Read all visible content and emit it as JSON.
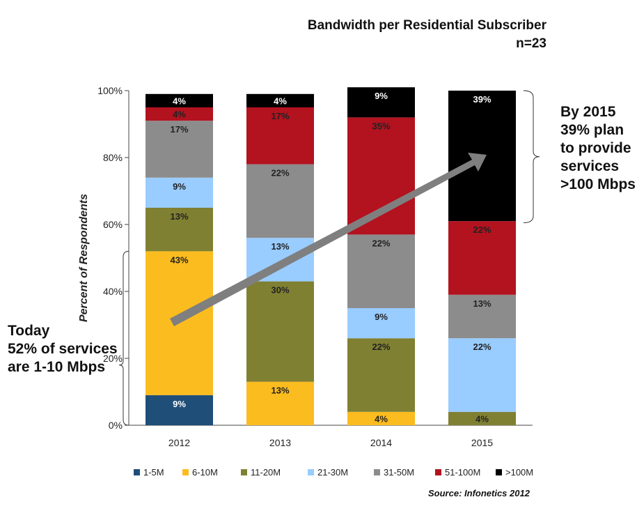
{
  "chart_data": {
    "type": "bar",
    "stacked": true,
    "title": "Bandwidth per Residential Subscriber",
    "subtitle": "n=23",
    "ylabel": "Percent of Respondents",
    "xlabel": "",
    "ylim": [
      0,
      100
    ],
    "yticks": [
      0,
      20,
      40,
      60,
      80,
      100
    ],
    "ytick_labels": [
      "0%",
      "20%",
      "40%",
      "60%",
      "80%",
      "100%"
    ],
    "categories": [
      "2012",
      "2013",
      "2014",
      "2015"
    ],
    "series": [
      {
        "name": "1-5M",
        "color": "#1f4e79",
        "values": [
          9,
          0,
          0,
          0
        ]
      },
      {
        "name": "6-10M",
        "color": "#fbbc1f",
        "values": [
          43,
          13,
          4,
          0
        ]
      },
      {
        "name": "11-20M",
        "color": "#808033",
        "values": [
          13,
          30,
          22,
          4
        ]
      },
      {
        "name": "21-30M",
        "color": "#99ccff",
        "values": [
          9,
          13,
          9,
          22
        ]
      },
      {
        "name": "31-50M",
        "color": "#8c8c8c",
        "values": [
          17,
          22,
          22,
          13
        ]
      },
      {
        "name": "51-100M",
        "color": "#b3121f",
        "values": [
          4,
          17,
          35,
          22
        ]
      },
      {
        "name": ">100M",
        "color": "#000000",
        "values": [
          4,
          4,
          9,
          39
        ]
      }
    ],
    "legend_position": "bottom"
  },
  "annotations": {
    "left_callout": [
      "Today",
      "52% of services",
      "are 1-10 Mbps"
    ],
    "right_callout": [
      "By 2015",
      "39% plan",
      "to provide",
      "services",
      ">100 Mbps"
    ],
    "source": "Source: Infonetics 2012"
  }
}
